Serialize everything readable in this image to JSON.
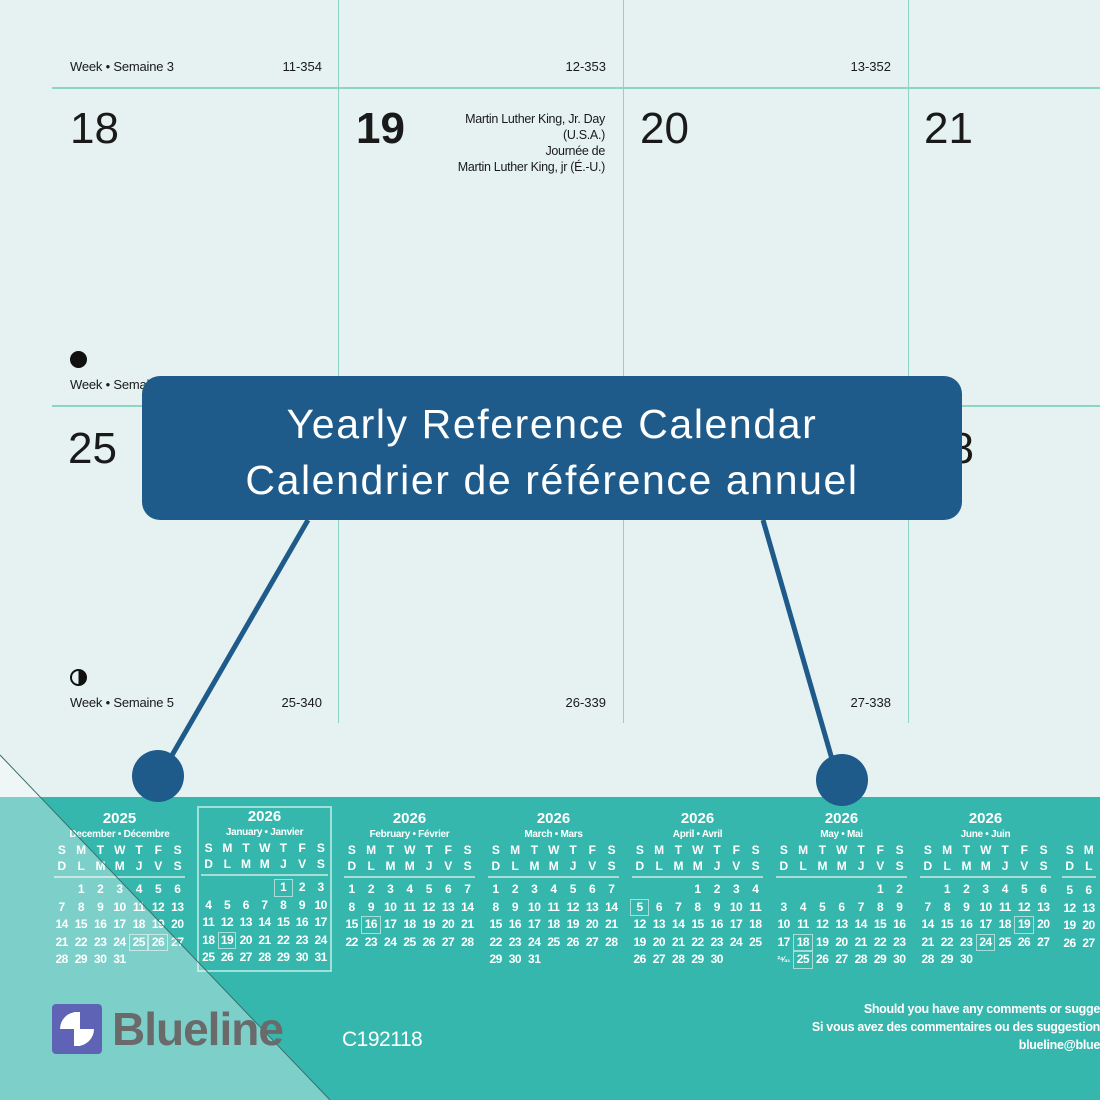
{
  "weeks": [
    {
      "label": "Week • Semaine 3",
      "codes": [
        "11-354",
        "12-353",
        "13-352"
      ]
    },
    {
      "label": "Week • Semaine 4"
    },
    {
      "label": "Week • Semaine 5",
      "codes": [
        "25-340",
        "26-339",
        "27-338"
      ]
    }
  ],
  "days": {
    "d18": "18",
    "d19": "19",
    "d20": "20",
    "d21": "21",
    "d25": "25",
    "d28": "28"
  },
  "holiday": {
    "line1": "Martin Luther King, Jr. Day",
    "line2": "(U.S.A.)",
    "line3": "Journée de",
    "line4": "Martin Luther King, jr (É.-U.)"
  },
  "moons": {
    "week4": "full-moon",
    "week5": "first-quarter-moon"
  },
  "callout": {
    "line1": "Yearly Reference Calendar",
    "line2": "Calendrier de référence annuel"
  },
  "colors": {
    "background": "#e5f2f1",
    "band": "#36b7ad",
    "callout": "#1f5b8a",
    "grid": "#8fd3c6"
  },
  "mini_calendars": [
    {
      "year": "2025",
      "month": "December • Décembre",
      "hdr_en": [
        "S",
        "M",
        "T",
        "W",
        "T",
        "F",
        "S"
      ],
      "hdr_fr": [
        "D",
        "L",
        "M",
        "M",
        "J",
        "V",
        "S"
      ],
      "rows": [
        [
          "",
          "1",
          "2",
          "3",
          "4",
          "5",
          "6"
        ],
        [
          "7",
          "8",
          "9",
          "10",
          "11",
          "12",
          "13"
        ],
        [
          "14",
          "15",
          "16",
          "17",
          "18",
          "19",
          "20"
        ],
        [
          "21",
          "22",
          "23",
          "24",
          "25",
          "26",
          "27"
        ],
        [
          "28",
          "29",
          "30",
          "31",
          "",
          "",
          ""
        ]
      ],
      "highlight": [
        "25",
        "26"
      ]
    },
    {
      "year": "2026",
      "month": "January • Janvier",
      "selected": true,
      "hdr_en": [
        "S",
        "M",
        "T",
        "W",
        "T",
        "F",
        "S"
      ],
      "hdr_fr": [
        "D",
        "L",
        "M",
        "M",
        "J",
        "V",
        "S"
      ],
      "rows": [
        [
          "",
          "",
          "",
          "",
          "1",
          "2",
          "3"
        ],
        [
          "4",
          "5",
          "6",
          "7",
          "8",
          "9",
          "10"
        ],
        [
          "11",
          "12",
          "13",
          "14",
          "15",
          "16",
          "17"
        ],
        [
          "18",
          "19",
          "20",
          "21",
          "22",
          "23",
          "24"
        ],
        [
          "25",
          "26",
          "27",
          "28",
          "29",
          "30",
          "31"
        ]
      ],
      "highlight": [
        "1",
        "19"
      ]
    },
    {
      "year": "2026",
      "month": "February • Février",
      "hdr_en": [
        "S",
        "M",
        "T",
        "W",
        "T",
        "F",
        "S"
      ],
      "hdr_fr": [
        "D",
        "L",
        "M",
        "M",
        "J",
        "V",
        "S"
      ],
      "rows": [
        [
          "1",
          "2",
          "3",
          "4",
          "5",
          "6",
          "7"
        ],
        [
          "8",
          "9",
          "10",
          "11",
          "12",
          "13",
          "14"
        ],
        [
          "15",
          "16",
          "17",
          "18",
          "19",
          "20",
          "21"
        ],
        [
          "22",
          "23",
          "24",
          "25",
          "26",
          "27",
          "28"
        ]
      ],
      "highlight": [
        "16"
      ]
    },
    {
      "year": "2026",
      "month": "March • Mars",
      "hdr_en": [
        "S",
        "M",
        "T",
        "W",
        "T",
        "F",
        "S"
      ],
      "hdr_fr": [
        "D",
        "L",
        "M",
        "M",
        "J",
        "V",
        "S"
      ],
      "rows": [
        [
          "1",
          "2",
          "3",
          "4",
          "5",
          "6",
          "7"
        ],
        [
          "8",
          "9",
          "10",
          "11",
          "12",
          "13",
          "14"
        ],
        [
          "15",
          "16",
          "17",
          "18",
          "19",
          "20",
          "21"
        ],
        [
          "22",
          "23",
          "24",
          "25",
          "26",
          "27",
          "28"
        ],
        [
          "29",
          "30",
          "31",
          "",
          "",
          "",
          ""
        ]
      ],
      "highlight": []
    },
    {
      "year": "2026",
      "month": "April • Avril",
      "hdr_en": [
        "S",
        "M",
        "T",
        "W",
        "T",
        "F",
        "S"
      ],
      "hdr_fr": [
        "D",
        "L",
        "M",
        "M",
        "J",
        "V",
        "S"
      ],
      "rows": [
        [
          "",
          "",
          "",
          "1",
          "2",
          "3",
          "4"
        ],
        [
          "5",
          "6",
          "7",
          "8",
          "9",
          "10",
          "11"
        ],
        [
          "12",
          "13",
          "14",
          "15",
          "16",
          "17",
          "18"
        ],
        [
          "19",
          "20",
          "21",
          "22",
          "23",
          "24",
          "25"
        ],
        [
          "26",
          "27",
          "28",
          "29",
          "30",
          "",
          ""
        ]
      ],
      "highlight": [
        "5"
      ]
    },
    {
      "year": "2026",
      "month": "May • Mai",
      "hdr_en": [
        "S",
        "M",
        "T",
        "W",
        "T",
        "F",
        "S"
      ],
      "hdr_fr": [
        "D",
        "L",
        "M",
        "M",
        "J",
        "V",
        "S"
      ],
      "rows": [
        [
          "",
          "",
          "",
          "",
          "",
          "1",
          "2"
        ],
        [
          "3",
          "4",
          "5",
          "6",
          "7",
          "8",
          "9"
        ],
        [
          "10",
          "11",
          "12",
          "13",
          "14",
          "15",
          "16"
        ],
        [
          "17",
          "18",
          "19",
          "20",
          "21",
          "22",
          "23"
        ],
        [
          "²⁴⁄₃₁",
          "25",
          "26",
          "27",
          "28",
          "29",
          "30"
        ]
      ],
      "highlight": [
        "18",
        "25"
      ]
    },
    {
      "year": "2026",
      "month": "June • Juin",
      "hdr_en": [
        "S",
        "M",
        "T",
        "W",
        "T",
        "F",
        "S"
      ],
      "hdr_fr": [
        "D",
        "L",
        "M",
        "M",
        "J",
        "V",
        "S"
      ],
      "rows": [
        [
          "",
          "1",
          "2",
          "3",
          "4",
          "5",
          "6"
        ],
        [
          "7",
          "8",
          "9",
          "10",
          "11",
          "12",
          "13"
        ],
        [
          "14",
          "15",
          "16",
          "17",
          "18",
          "19",
          "20"
        ],
        [
          "21",
          "22",
          "23",
          "24",
          "25",
          "26",
          "27"
        ],
        [
          "28",
          "29",
          "30",
          "",
          "",
          "",
          ""
        ]
      ],
      "highlight": [
        "19",
        "24"
      ]
    },
    {
      "year": "",
      "month": "",
      "hdr_en": [
        "S",
        "M",
        "",
        "",
        "",
        "",
        ""
      ],
      "hdr_fr": [
        "D",
        "L",
        "",
        "",
        "",
        "",
        ""
      ],
      "rows": [
        [
          "",
          "",
          "",
          "",
          "",
          "",
          ""
        ],
        [
          "5",
          "6",
          "",
          "",
          "",
          "",
          ""
        ],
        [
          "12",
          "13",
          "",
          "",
          "",
          "",
          ""
        ],
        [
          "19",
          "20",
          "",
          "",
          "",
          "",
          ""
        ],
        [
          "26",
          "27",
          "",
          "",
          "",
          "",
          ""
        ]
      ],
      "highlight": []
    }
  ],
  "footer": {
    "brand": "Blueline",
    "product_code": "C192118",
    "line1": "Should you have any comments or sugge",
    "line2": "Si vous avez des commentaires ou des suggestion",
    "line3": "blueline@blue"
  }
}
